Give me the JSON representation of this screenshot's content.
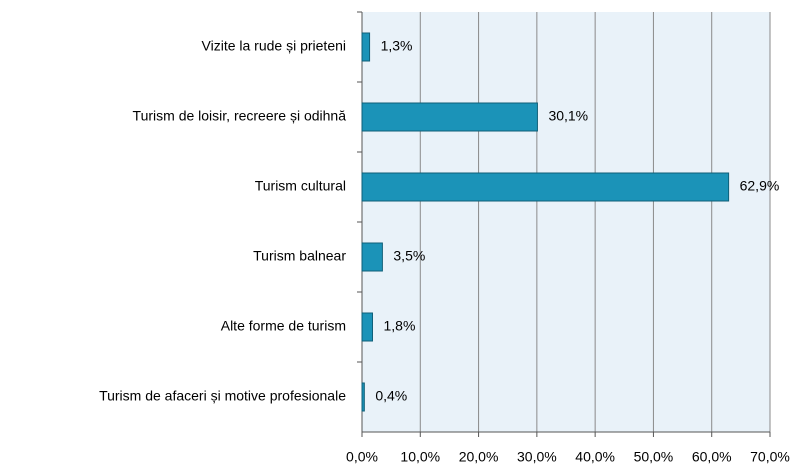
{
  "chart_data": {
    "type": "bar",
    "orientation": "horizontal",
    "categories": [
      "Vizite la rude și prieteni",
      "Turism de loisir, recreere și odihnă",
      "Turism cultural",
      "Turism balnear",
      "Alte forme de turism",
      "Turism de afaceri și motive profesionale"
    ],
    "values": [
      1.3,
      30.1,
      62.9,
      3.5,
      1.8,
      0.4
    ],
    "value_labels": [
      "1,3%",
      "30,1%",
      "62,9%",
      "3,5%",
      "1,8%",
      "0,4%"
    ],
    "color": "#1b93b8",
    "xlim": [
      0,
      70
    ],
    "xticks": [
      {
        "value": 0,
        "label": "0,0%"
      },
      {
        "value": 10,
        "label": "10,0%"
      },
      {
        "value": 20,
        "label": "20,0%"
      },
      {
        "value": 30,
        "label": "30,0%"
      },
      {
        "value": 40,
        "label": "40,0%"
      },
      {
        "value": 50,
        "label": "50,0%"
      },
      {
        "value": 60,
        "label": "60,0%"
      },
      {
        "value": 70,
        "label": "70,0%"
      }
    ],
    "grid": true
  }
}
